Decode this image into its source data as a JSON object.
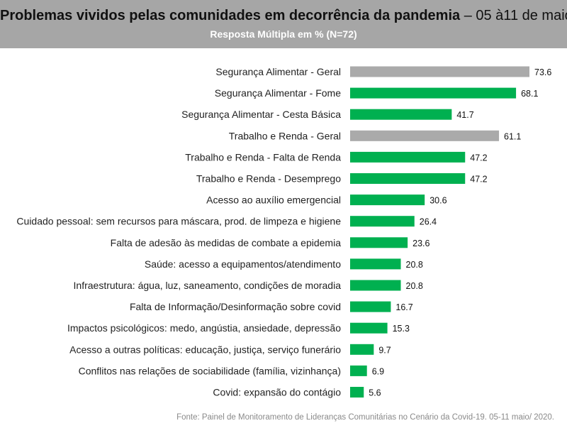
{
  "header": {
    "title_main": "Problemas vividos pelas comunidades em decorrência da pandemia",
    "title_date": " – 05 à11 de maio",
    "subtitle": "Resposta Múltipla em % (N=72)"
  },
  "footer": {
    "source": "Fonte: Painel de Monitoramento de Lideranças Comunitárias no Cenário da Covid-19. 05-11 maio/ 2020."
  },
  "colors": {
    "group_total": "#aaaaaa",
    "subitem": "#00b050",
    "header_bg": "#a6a6a6"
  },
  "chart_data": {
    "type": "bar",
    "orientation": "horizontal",
    "title": "Problemas vividos pelas comunidades em decorrência da pandemia – 05 à11 de maio",
    "subtitle": "Resposta Múltipla em % (N=72)",
    "xlabel": "",
    "ylabel": "",
    "xlim": [
      0,
      73.6
    ],
    "grid": false,
    "legend": "none",
    "categories": [
      "Segurança Alimentar - Geral",
      "Segurança Alimentar - Fome",
      "Segurança Alimentar - Cesta Básica",
      "Trabalho e Renda - Geral",
      "Trabalho e Renda - Falta de Renda",
      "Trabalho e Renda - Desemprego",
      "Acesso ao auxílio emergencial",
      "Cuidado pessoal: sem recursos para máscara, prod. de limpeza e higiene",
      "Falta de adesão às medidas de combate a epidemia",
      "Saúde: acesso a equipamentos/atendimento",
      "Infraestrutura:  água, luz, saneamento, condições de moradia",
      "Falta de Informação/Desinformação sobre covid",
      "Impactos psicológicos: medo, angústia, ansiedade, depressão",
      "Acesso a outras políticas: educação, justiça, serviço funerário",
      "Conflitos nas relações de sociabilidade (família, vizinhança)",
      "Covid: expansão do contágio"
    ],
    "values": [
      73.6,
      68.1,
      41.7,
      61.1,
      47.2,
      47.2,
      30.6,
      26.4,
      23.6,
      20.8,
      20.8,
      16.7,
      15.3,
      9.7,
      6.9,
      5.6
    ],
    "value_labels": [
      "73.6",
      "68.1",
      "41.7",
      "61.1",
      "47.2",
      "47.2",
      "30.6",
      "26.4",
      "23.6",
      "20.8",
      "20.8",
      "16.7",
      "15.3",
      "9.7",
      "6.9",
      "5.6"
    ],
    "bar_groups": [
      "total",
      "sub",
      "sub",
      "total",
      "sub",
      "sub",
      "sub",
      "sub",
      "sub",
      "sub",
      "sub",
      "sub",
      "sub",
      "sub",
      "sub",
      "sub"
    ]
  }
}
